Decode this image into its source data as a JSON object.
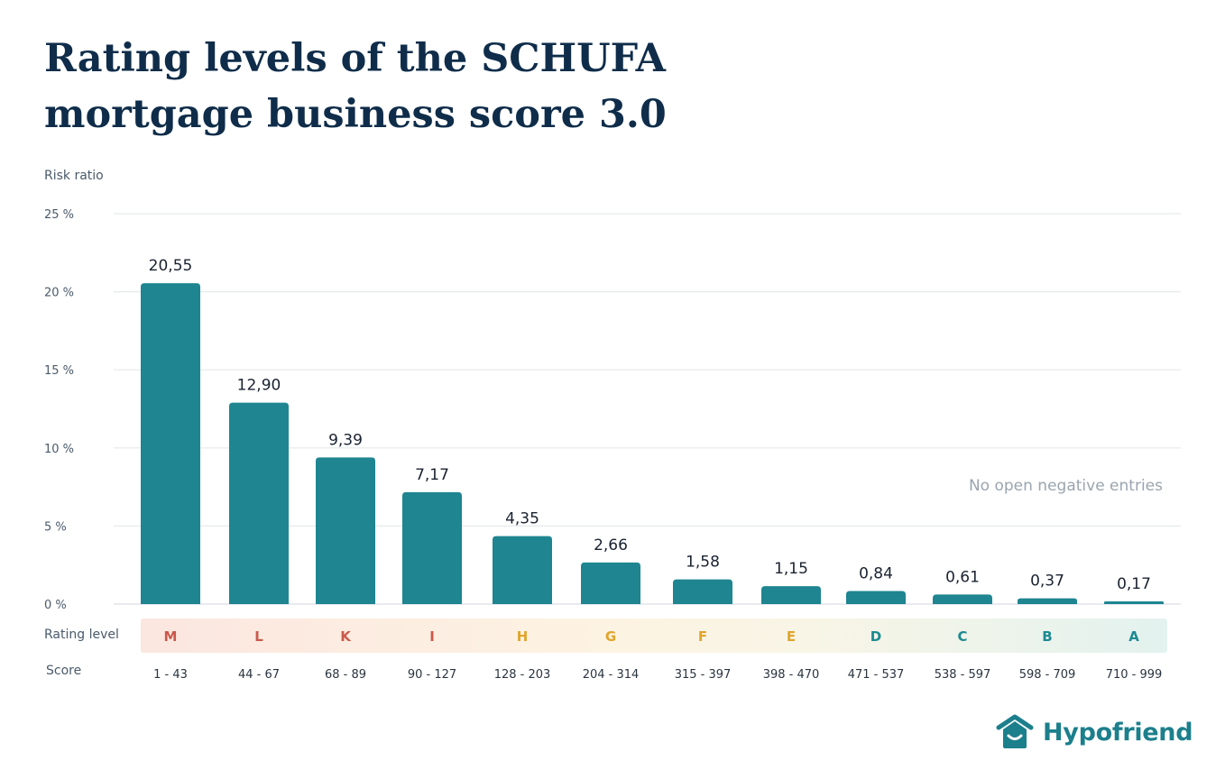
{
  "title_line1": "Rating levels of the SCHUFA",
  "title_line2": "mortgage business score 3.0",
  "note": "No open negative entries",
  "row_labels": {
    "rating": "Rating level",
    "score": "Score"
  },
  "brand": "Hypofriend",
  "colors": {
    "bar": "#1e8591",
    "title": "#0f2d4a",
    "grade_red": "#c9594a",
    "grade_yellow": "#e0a52b",
    "grade_teal": "#1c8a92"
  },
  "chart_data": {
    "type": "bar",
    "ylabel": "Risk ratio",
    "ylim": [
      0,
      25
    ],
    "yticks": [
      0,
      5,
      10,
      15,
      20,
      25
    ],
    "ytick_labels": [
      "0 %",
      "5 %",
      "10 %",
      "15 %",
      "20 %",
      "25 %"
    ],
    "grid": true,
    "categories": [
      "M",
      "L",
      "K",
      "I",
      "H",
      "G",
      "F",
      "E",
      "D",
      "C",
      "B",
      "A"
    ],
    "values": [
      20.55,
      12.9,
      9.39,
      7.17,
      4.35,
      2.66,
      1.58,
      1.15,
      0.84,
      0.61,
      0.37,
      0.17
    ],
    "value_labels": [
      "20,55",
      "12,90",
      "9,39",
      "7,17",
      "4,35",
      "2,66",
      "1,58",
      "1,15",
      "0,84",
      "0,61",
      "0,37",
      "0,17"
    ],
    "scores": [
      "1 - 43",
      "44 - 67",
      "68 - 89",
      "90 - 127",
      "128 - 203",
      "204 - 314",
      "315 - 397",
      "398 - 470",
      "471 - 537",
      "538 - 597",
      "598 - 709",
      "710 - 999"
    ],
    "grade_colors": [
      "#c9594a",
      "#c9594a",
      "#c9594a",
      "#c9594a",
      "#e0a52b",
      "#e0a52b",
      "#e0a52b",
      "#e0a52b",
      "#1c8a92",
      "#1c8a92",
      "#1c8a92",
      "#1c8a92"
    ]
  }
}
